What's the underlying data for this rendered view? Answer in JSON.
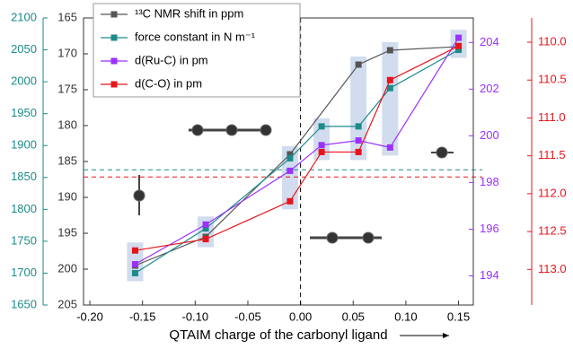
{
  "chart_data": {
    "type": "line",
    "xlabel": "QTAIM charge of the carbonyl ligand",
    "xlim": [
      -0.206,
      0.164
    ],
    "xticks": [
      {
        "value": -0.2,
        "label": "-0.20"
      },
      {
        "value": -0.15,
        "label": "-0.15"
      },
      {
        "value": -0.1,
        "label": "-0.10"
      },
      {
        "value": -0.05,
        "label": "-0.05"
      },
      {
        "value": 0,
        "label": "0.00"
      },
      {
        "value": 0.05,
        "label": "0.05"
      },
      {
        "value": 0.1,
        "label": "0.10"
      },
      {
        "value": 0.15,
        "label": "0.15"
      }
    ],
    "ylim": [
      205,
      165
    ],
    "yticks": [
      165,
      170,
      175,
      180,
      185,
      190,
      195,
      200,
      205
    ],
    "ycolor": "#333333",
    "y2lim": [
      192.75,
      205.05
    ],
    "y2ticks": [
      194,
      196,
      198,
      200,
      202,
      204
    ],
    "y2color": "#9b30ff",
    "y3lim": [
      1650,
      2100
    ],
    "y3ticks": [
      1650,
      1700,
      1750,
      1800,
      1850,
      1900,
      1950,
      2000,
      2050,
      2100
    ],
    "y3color": "#1e8a8a",
    "y4lim": [
      113.47,
      109.68
    ],
    "y4ticks": [
      {
        "value": 110.0,
        "label": "110.0"
      },
      110.5,
      {
        "value": 111.0,
        "label": "111.0"
      },
      111.5,
      {
        "value": 112.0,
        "label": "112.0"
      },
      112.5,
      {
        "value": 113.0,
        "label": "113.0"
      }
    ],
    "y4color": "#e8141c",
    "series": [
      {
        "name": "¹³C NMR shift in ppm",
        "color": "#555555",
        "axis": "y",
        "x": [
          -0.157,
          -0.09,
          -0.01,
          0.055,
          0.085,
          0.15
        ],
        "values": [
          199.5,
          195.5,
          184,
          171.5,
          169.5,
          169
        ]
      },
      {
        "name": "force constant in N m⁻¹",
        "color": "#1e8a8a",
        "axis": "y3",
        "x": [
          -0.157,
          -0.09,
          -0.01,
          0.02,
          0.055,
          0.085,
          0.15
        ],
        "values": [
          1700,
          1770,
          1880,
          1930,
          1930,
          1990,
          2050
        ]
      },
      {
        "name": "d(Ru-C) in pm",
        "color": "#9b30ff",
        "axis": "y2",
        "x": [
          -0.157,
          -0.09,
          -0.01,
          0.02,
          0.055,
          0.085,
          0.15
        ],
        "values": [
          194.5,
          196.2,
          198.5,
          199.6,
          199.8,
          199.5,
          204.2
        ]
      },
      {
        "name": "d(C-O) in pm",
        "color": "#e8141c",
        "axis": "y4",
        "x": [
          -0.157,
          -0.09,
          -0.01,
          0.02,
          0.055,
          0.085,
          0.15
        ],
        "values": [
          112.75,
          112.6,
          112.1,
          111.45,
          111.45,
          110.5,
          110.05
        ]
      }
    ],
    "hlines": [
      {
        "axis": "y3",
        "value": 1862,
        "color": "#1e8a8a"
      },
      {
        "axis": "y4",
        "value": 111.78,
        "color": "#e8141c"
      }
    ],
    "vlines": [
      {
        "value": 0,
        "color": "#000000"
      }
    ]
  }
}
